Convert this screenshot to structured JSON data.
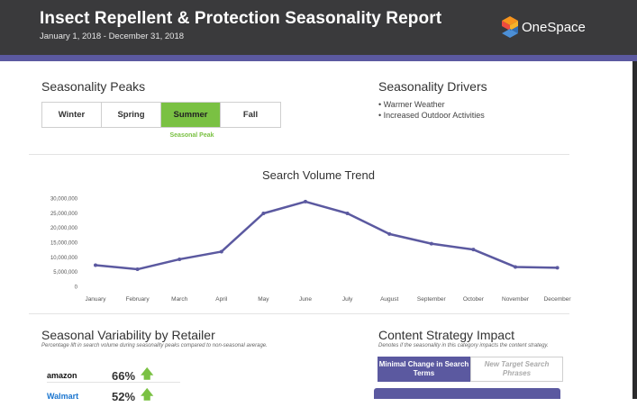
{
  "header": {
    "title": "Insect Repellent & Protection Seasonality Report",
    "date_range": "January 1, 2018 - December 31, 2018",
    "brand": "OneSpace"
  },
  "seasonality_peaks": {
    "title": "Seasonality Peaks",
    "seasons": [
      "Winter",
      "Spring",
      "Summer",
      "Fall"
    ],
    "active_season": "Summer",
    "peak_label": "Seasonal Peak"
  },
  "seasonality_drivers": {
    "title": "Seasonality Drivers",
    "items": [
      "• Warmer Weather",
      "• Increased Outdoor Activities"
    ]
  },
  "chart_data": {
    "type": "line",
    "title": "Search Volume Trend",
    "categories": [
      "January",
      "February",
      "March",
      "April",
      "May",
      "June",
      "July",
      "August",
      "September",
      "October",
      "November",
      "December"
    ],
    "series": [
      {
        "values": [
          7200000,
          5800000,
          9200000,
          11800000,
          24800000,
          28800000,
          24800000,
          17800000,
          14500000,
          12500000,
          6600000,
          6300000
        ]
      }
    ],
    "yticks": [
      "30,000,000",
      "25,000,000",
      "20,000,000",
      "15,000,000",
      "10,000,000",
      "5,000,000",
      "0"
    ],
    "ylim": [
      0,
      30000000
    ],
    "grid": false,
    "line_color": "#5b59a0"
  },
  "retailers": {
    "title": "Seasonal Variability by Retailer",
    "subtitle": "Percentage lift in search volume during seasonality peaks compared to non-seasonal average.",
    "rows": [
      {
        "name": "amazon",
        "value": "66%",
        "trend": "up"
      },
      {
        "name": "Walmart",
        "value": "52%",
        "trend": "up"
      }
    ]
  },
  "content_strategy": {
    "title": "Content Strategy Impact",
    "subtitle": "Denotes if the seasonality in this category impacts the content strategy.",
    "tabs": [
      {
        "label": "Minimal Change in Search Terms",
        "active": true
      },
      {
        "label": "New Target Search Phrases",
        "active": false
      }
    ]
  },
  "colors": {
    "accent": "#5b59a0",
    "highlight": "#7ac143",
    "header_bg": "#3a3a3c"
  }
}
